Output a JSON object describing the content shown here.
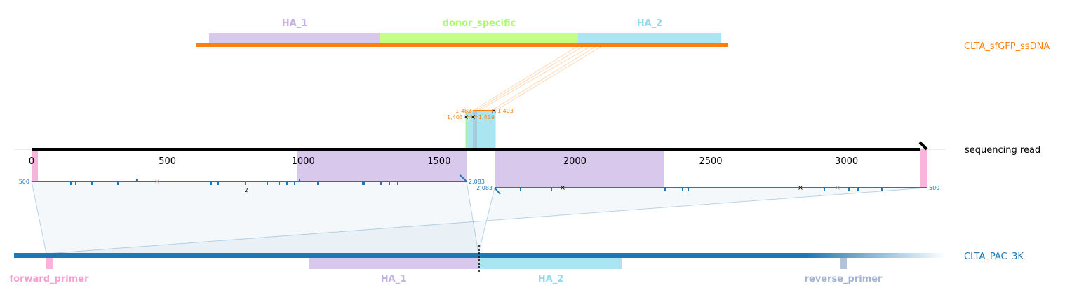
{
  "donor": {
    "name": "CLTA_sfGFP_ssDNA",
    "color": "#ff7f0e",
    "features": [
      {
        "name": "HA_1",
        "color": "#c5b0e5",
        "fill": "#d8c8ec"
      },
      {
        "name": "donor_specific",
        "color": "#b1f76f",
        "fill": "#c6ff88"
      },
      {
        "name": "HA_2",
        "color": "#8fdcec",
        "fill": "#a9e6f1"
      }
    ]
  },
  "read": {
    "name": "sequencing read",
    "color": "#000000",
    "axis_ticks": [
      "0",
      "500",
      "1000",
      "1500",
      "2000",
      "2500",
      "3000"
    ],
    "mismatch_count_label": "2"
  },
  "donor_alignment_labels": {
    "top_left": "1,482",
    "top_right": "1,403",
    "bottom_left": "1,403",
    "bottom_right": "1,439"
  },
  "target_alignment_labels": {
    "left_start": "500",
    "left_end": "2,083",
    "right_start": "2,083",
    "right_end": "500"
  },
  "target": {
    "name": "CLTA_PAC_3K",
    "color": "#1f77b4",
    "features": [
      {
        "name": "forward_primer",
        "color": "#f79fd2",
        "fill": "#f9b4dc"
      },
      {
        "name": "HA_1",
        "color": "#c5b0e5",
        "fill": "#d8c8ec"
      },
      {
        "name": "HA_2",
        "color": "#8fdcec",
        "fill": "#a9e6f1"
      },
      {
        "name": "reverse_primer",
        "color": "#a3b4d3",
        "fill": "#b3c2dc"
      }
    ]
  }
}
